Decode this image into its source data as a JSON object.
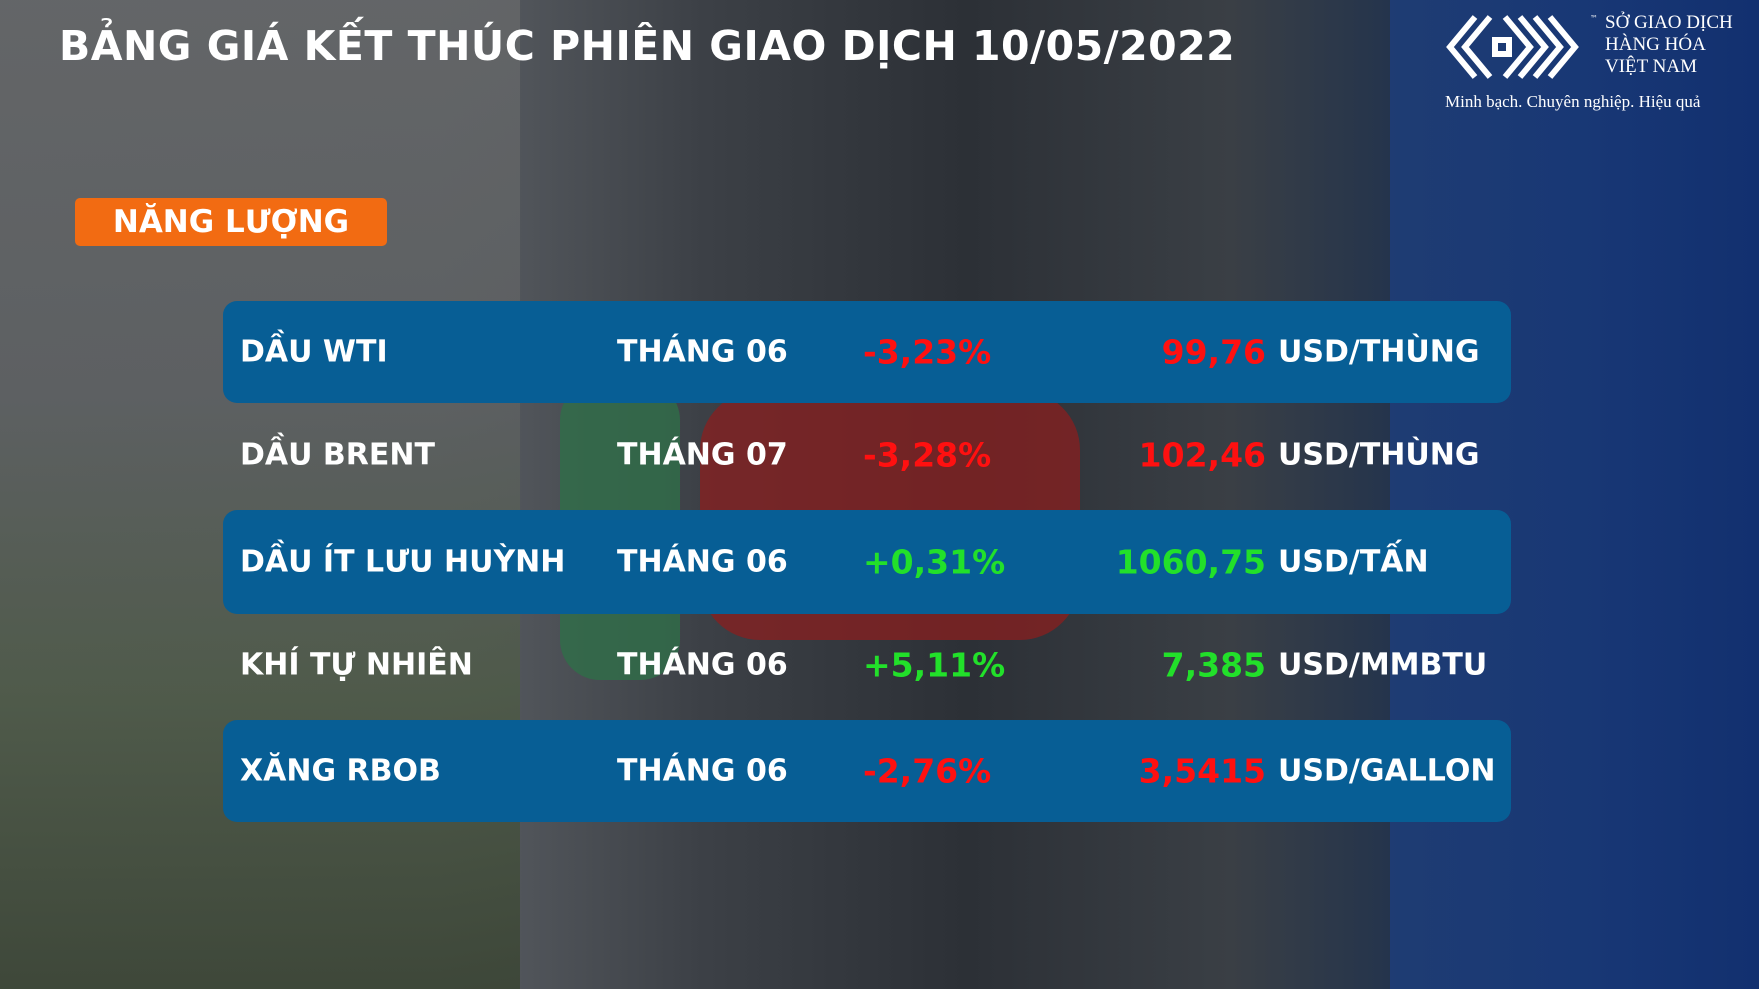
{
  "title": "BẢNG GIÁ KẾT THÚC PHIÊN GIAO DỊCH 10/05/2022",
  "logo": {
    "line1": "SỞ GIAO DỊCH",
    "line2": "HÀNG HÓA",
    "line3": "VIỆT NAM",
    "tm": "™",
    "slogan": "Minh bạch. Chuyên nghiệp. Hiệu quả"
  },
  "category": "NĂNG LƯỢNG",
  "colors": {
    "up": "#22e02a",
    "down": "#ff1010",
    "row": "#075e95",
    "badge": "#f26b12"
  },
  "rows": [
    {
      "name": "DẦU WTI",
      "month": "THÁNG 06",
      "change": "-3,23%",
      "price": "99,76",
      "unit": "USD/THÙNG",
      "trend": "down"
    },
    {
      "name": "DẦU BRENT",
      "month": "THÁNG 07",
      "change": "-3,28%",
      "price": "102,46",
      "unit": "USD/THÙNG",
      "trend": "down"
    },
    {
      "name": "DẦU ÍT LƯU HUỲNH",
      "month": "THÁNG 06",
      "change": "+0,31%",
      "price": "1060,75",
      "unit": "USD/TẤN",
      "trend": "up"
    },
    {
      "name": "KHÍ TỰ NHIÊN",
      "month": "THÁNG 06",
      "change": "+5,11%",
      "price": "7,385",
      "unit": "USD/MMBTU",
      "trend": "up"
    },
    {
      "name": "XĂNG RBOB",
      "month": "THÁNG 06",
      "change": "-2,76%",
      "price": "3,5415",
      "unit": "USD/GALLON",
      "trend": "down"
    }
  ]
}
